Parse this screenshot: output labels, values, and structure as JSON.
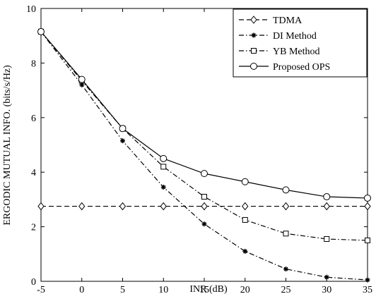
{
  "chart_data": {
    "type": "line",
    "xlabel": "INR (dB)",
    "ylabel": "ERGODIC MUTUAL INFO. (bits/s/Hz)",
    "xlim": [
      -5,
      35
    ],
    "ylim": [
      0,
      10
    ],
    "xticks": [
      -5,
      0,
      5,
      10,
      15,
      20,
      25,
      30,
      35
    ],
    "yticks": [
      0,
      2,
      4,
      6,
      8,
      10
    ],
    "grid": false,
    "legend_position": "top-right",
    "x": [
      -5,
      0,
      5,
      10,
      15,
      20,
      25,
      30,
      35
    ],
    "series": [
      {
        "name": "TDMA",
        "line": "dashed",
        "marker": "diamond",
        "values": [
          2.75,
          2.75,
          2.75,
          2.75,
          2.75,
          2.75,
          2.75,
          2.75,
          2.75
        ]
      },
      {
        "name": "DI Method",
        "line": "dashdot",
        "marker": "asterisk",
        "values": [
          9.15,
          7.2,
          5.15,
          3.45,
          2.1,
          1.1,
          0.45,
          0.15,
          0.05
        ]
      },
      {
        "name": "YB Method",
        "line": "dashdot",
        "marker": "square",
        "values": [
          9.15,
          7.35,
          5.6,
          4.2,
          3.1,
          2.25,
          1.75,
          1.55,
          1.5
        ]
      },
      {
        "name": "Proposed OPS",
        "line": "solid",
        "marker": "circle",
        "values": [
          9.15,
          7.4,
          5.6,
          4.5,
          3.95,
          3.65,
          3.35,
          3.1,
          3.05
        ]
      }
    ]
  }
}
